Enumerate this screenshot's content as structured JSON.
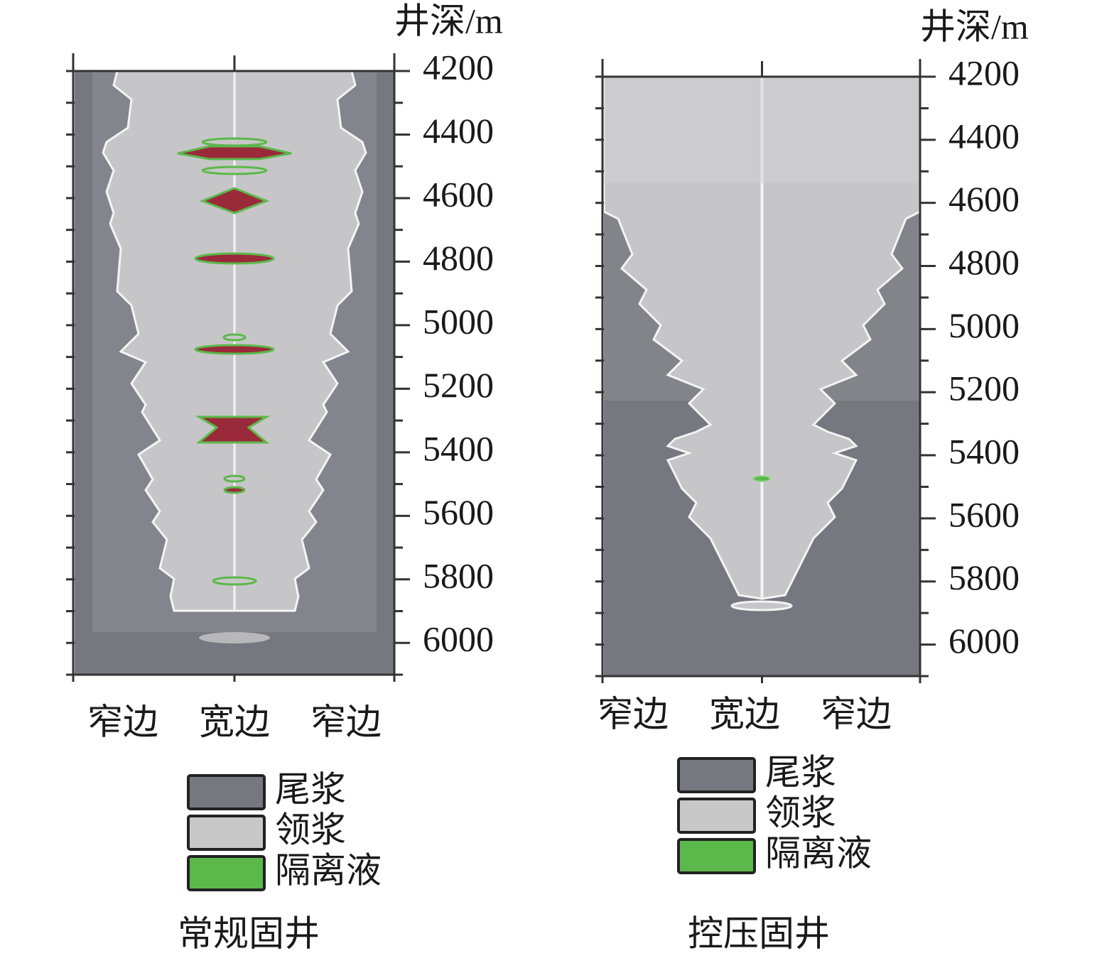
{
  "chart_data": [
    {
      "type": "heatmap",
      "title": "常规固井",
      "y_label": "井深/m",
      "categories": [
        "窄边",
        "宽边",
        "窄边"
      ],
      "ylim": [
        4200,
        6100
      ],
      "yticks": [
        4200,
        4400,
        4600,
        4800,
        5000,
        5200,
        5400,
        5600,
        5800,
        6000
      ],
      "minor_yticks": [
        4300,
        4500,
        4700,
        4900,
        5100,
        5300,
        5500,
        5700,
        5900,
        6100
      ],
      "series": [
        {
          "name": "尾浆",
          "color": "#767880"
        },
        {
          "name": "领浆",
          "color": "#c8c8c8"
        },
        {
          "name": "隔离液",
          "color": "#5cb84a"
        }
      ]
    },
    {
      "type": "heatmap",
      "title": "控压固井",
      "y_label": "井深/m",
      "categories": [
        "窄边",
        "宽边",
        "窄边"
      ],
      "ylim": [
        4200,
        6100
      ],
      "yticks": [
        4200,
        4400,
        4600,
        4800,
        5000,
        5200,
        5400,
        5600,
        5800,
        6000
      ],
      "minor_yticks": [
        4300,
        4500,
        4700,
        4900,
        5100,
        5300,
        5500,
        5700,
        5900,
        6100
      ],
      "series": [
        {
          "name": "尾浆",
          "color": "#767880"
        },
        {
          "name": "领浆",
          "color": "#c8c8c8"
        },
        {
          "name": "隔离液",
          "color": "#5cb84a"
        }
      ]
    }
  ]
}
